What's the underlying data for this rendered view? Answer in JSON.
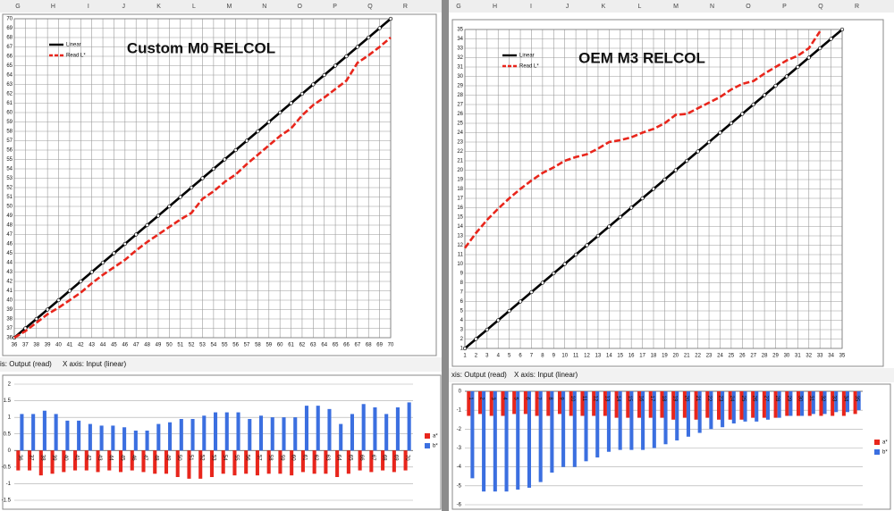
{
  "left_columns": [
    "G",
    "H",
    "I",
    "J",
    "K",
    "L",
    "M",
    "N",
    "O",
    "P",
    "Q",
    "R"
  ],
  "right_columns": [
    "G",
    "H",
    "I",
    "J",
    "K",
    "L",
    "M",
    "N",
    "O",
    "P",
    "Q",
    "R"
  ],
  "left_caption_y": "is: Output (read)",
  "left_caption_x": "X axis: Input (linear)",
  "right_caption_y": "xis: Output (read)",
  "right_caption_x": "X axis: Input (linear)",
  "chart_data": [
    {
      "type": "line",
      "title": "Custom M0 RELCOL",
      "legend": "upper left",
      "grid": true,
      "x": [
        36,
        37,
        38,
        39,
        40,
        41,
        42,
        43,
        44,
        45,
        46,
        47,
        48,
        49,
        50,
        51,
        52,
        53,
        54,
        55,
        56,
        57,
        58,
        59,
        60,
        61,
        62,
        63,
        64,
        65,
        66,
        67,
        68,
        69,
        70
      ],
      "xlim": [
        36,
        70
      ],
      "xticks": [
        36,
        37,
        38,
        39,
        40,
        41,
        42,
        43,
        44,
        45,
        46,
        47,
        48,
        49,
        50,
        51,
        52,
        53,
        54,
        55,
        56,
        57,
        58,
        59,
        60,
        61,
        62,
        63,
        64,
        65,
        66,
        67,
        68,
        69,
        70
      ],
      "ylim": [
        36,
        70
      ],
      "yticks": [
        36,
        37,
        38,
        39,
        40,
        41,
        42,
        43,
        44,
        45,
        46,
        47,
        48,
        49,
        50,
        51,
        52,
        53,
        54,
        55,
        56,
        57,
        58,
        59,
        60,
        61,
        62,
        63,
        64,
        65,
        66,
        67,
        68,
        69,
        70
      ],
      "series": [
        {
          "name": "Linear",
          "color": "#000000",
          "marker": "circle",
          "line_style": "solid",
          "values": [
            36,
            37,
            38,
            39,
            40,
            41,
            42,
            43,
            44,
            45,
            46,
            47,
            48,
            49,
            50,
            51,
            52,
            53,
            54,
            55,
            56,
            57,
            58,
            59,
            60,
            61,
            62,
            63,
            64,
            65,
            66,
            67,
            68,
            69,
            70
          ]
        },
        {
          "name": "Read L*",
          "color": "#e8261c",
          "line_style": "dashed",
          "values": [
            36,
            36.7,
            37.6,
            38.5,
            39.2,
            40,
            40.8,
            41.8,
            42.7,
            43.5,
            44.3,
            45.3,
            46.2,
            47,
            47.8,
            48.6,
            49.3,
            50.8,
            51.6,
            52.6,
            53.4,
            54.5,
            55.5,
            56.5,
            57.5,
            58.3,
            59.7,
            60.8,
            61.6,
            62.5,
            63.4,
            65.3,
            66.1,
            67,
            68
          ]
        }
      ]
    },
    {
      "type": "line",
      "title": "OEM M3 RELCOL",
      "legend": "upper left",
      "grid": true,
      "x": [
        1,
        2,
        3,
        4,
        5,
        6,
        7,
        8,
        9,
        10,
        11,
        12,
        13,
        14,
        15,
        16,
        17,
        18,
        19,
        20,
        21,
        22,
        23,
        24,
        25,
        26,
        27,
        28,
        29,
        30,
        31,
        32,
        33,
        34,
        35
      ],
      "xlim": [
        1,
        35
      ],
      "xticks": [
        1,
        2,
        3,
        4,
        5,
        6,
        7,
        8,
        9,
        10,
        11,
        12,
        13,
        14,
        15,
        16,
        17,
        18,
        19,
        20,
        21,
        22,
        23,
        24,
        25,
        26,
        27,
        28,
        29,
        30,
        31,
        32,
        33,
        34,
        35
      ],
      "ylim": [
        1,
        35
      ],
      "yticks": [
        1,
        2,
        3,
        4,
        5,
        6,
        7,
        8,
        9,
        10,
        11,
        12,
        13,
        14,
        15,
        16,
        17,
        18,
        19,
        20,
        21,
        22,
        23,
        24,
        25,
        26,
        27,
        28,
        29,
        30,
        31,
        32,
        33,
        34,
        35
      ],
      "series": [
        {
          "name": "Linear",
          "color": "#000000",
          "marker": "circle",
          "line_style": "solid",
          "values": [
            1,
            2,
            3,
            4,
            5,
            6,
            7,
            8,
            9,
            10,
            11,
            12,
            13,
            14,
            15,
            16,
            17,
            18,
            19,
            20,
            21,
            22,
            23,
            24,
            25,
            26,
            27,
            28,
            29,
            30,
            31,
            32,
            33,
            34,
            35
          ]
        },
        {
          "name": "Read L*",
          "color": "#e8261c",
          "line_style": "dashed",
          "values": [
            11.7,
            13.3,
            14.7,
            15.9,
            17,
            18,
            18.9,
            19.7,
            20.3,
            21,
            21.4,
            21.7,
            22.3,
            23,
            23.2,
            23.5,
            24,
            24.4,
            25,
            25.9,
            26,
            26.6,
            27.2,
            27.8,
            28.6,
            29.2,
            29.5,
            30.3,
            31,
            31.7,
            32.2,
            33,
            34.8,
            null,
            null
          ]
        }
      ]
    },
    {
      "type": "bar",
      "legend": "right",
      "grid": true,
      "categories": [
        36,
        37,
        38,
        39,
        40,
        41,
        42,
        43,
        44,
        45,
        46,
        47,
        48,
        49,
        50,
        51,
        52,
        53,
        54,
        55,
        56,
        57,
        58,
        59,
        60,
        61,
        62,
        63,
        64,
        65,
        66,
        67,
        68,
        69,
        70
      ],
      "ylim": [
        -1.5,
        2
      ],
      "yticks": [
        -1.5,
        -1,
        -0.5,
        0,
        0.5,
        1,
        1.5,
        2
      ],
      "series": [
        {
          "name": "a*",
          "color": "#e8261c",
          "values": [
            -0.6,
            -0.6,
            -0.75,
            -0.7,
            -0.65,
            -0.6,
            -0.6,
            -0.65,
            -0.6,
            -0.65,
            -0.6,
            -0.65,
            -0.7,
            -0.7,
            -0.8,
            -0.85,
            -0.85,
            -0.8,
            -0.7,
            -0.75,
            -0.7,
            -0.75,
            -0.7,
            -0.7,
            -0.75,
            -0.65,
            -0.7,
            -0.7,
            -0.8,
            -0.7,
            -0.6,
            -0.65,
            -0.6,
            -0.65,
            -0.6
          ]
        },
        {
          "name": "b*",
          "color": "#3b6fe0",
          "values": [
            1.1,
            1.1,
            1.2,
            1.1,
            0.9,
            0.9,
            0.8,
            0.75,
            0.75,
            0.7,
            0.6,
            0.6,
            0.8,
            0.85,
            0.95,
            0.95,
            1.05,
            1.15,
            1.15,
            1.15,
            0.95,
            1.05,
            1.0,
            1.0,
            1.0,
            1.35,
            1.35,
            1.25,
            0.8,
            1.1,
            1.4,
            1.3,
            1.1,
            1.3,
            1.45
          ]
        }
      ]
    },
    {
      "type": "bar",
      "legend": "right",
      "grid": true,
      "categories": [
        1,
        2,
        3,
        4,
        5,
        6,
        7,
        8,
        9,
        10,
        11,
        12,
        13,
        14,
        15,
        16,
        17,
        18,
        19,
        20,
        21,
        22,
        23,
        24,
        25,
        26,
        27,
        28,
        29,
        30,
        31,
        32,
        33,
        34,
        35
      ],
      "ylim": [
        -6,
        0
      ],
      "yticks": [
        -6,
        -5,
        -4,
        -3,
        -2,
        -1,
        0
      ],
      "series": [
        {
          "name": "a*",
          "color": "#e8261c",
          "values": [
            -1.3,
            -1.2,
            -1.3,
            -1.3,
            -1.2,
            -1.2,
            -1.3,
            -1.3,
            -1.2,
            -1.3,
            -1.3,
            -1.3,
            -1.3,
            -1.4,
            -1.4,
            -1.4,
            -1.4,
            -1.4,
            -1.5,
            -1.4,
            -1.5,
            -1.4,
            -1.5,
            -1.5,
            -1.5,
            -1.4,
            -1.4,
            -1.4,
            -1.3,
            -1.3,
            -1.3,
            -1.3,
            -1.3,
            -1.3,
            -1.2
          ]
        },
        {
          "name": "b*",
          "color": "#3b6fe0",
          "values": [
            -4.6,
            -5.3,
            -5.3,
            -5.3,
            -5.2,
            -5.1,
            -4.8,
            -4.3,
            -4.0,
            -4.0,
            -3.7,
            -3.5,
            -3.2,
            -3.1,
            -3.1,
            -3.1,
            -3.0,
            -2.8,
            -2.6,
            -2.4,
            -2.2,
            -2.0,
            -1.9,
            -1.7,
            -1.6,
            -1.6,
            -1.5,
            -1.4,
            -1.3,
            -1.3,
            -1.2,
            -1.2,
            -1.1,
            -1.1,
            -1.0
          ]
        }
      ]
    }
  ]
}
